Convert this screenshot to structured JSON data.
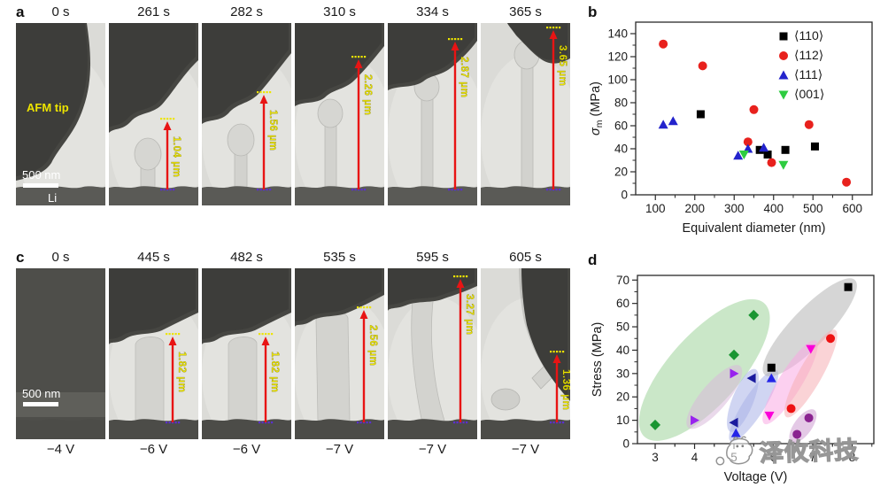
{
  "panels": {
    "a": {
      "label": "a",
      "annotations": {
        "afm_tip": "AFM tip",
        "scale_bar": "500 nm",
        "substrate": "Li"
      },
      "frames": [
        {
          "time": "0 s"
        },
        {
          "time": "261 s",
          "measurement": "1.04 μm"
        },
        {
          "time": "282 s",
          "measurement": "1.56 μm"
        },
        {
          "time": "310 s",
          "measurement": "2.26 μm"
        },
        {
          "time": "334 s",
          "measurement": "2.87 μm"
        },
        {
          "time": "365 s",
          "measurement": "3.65 μm"
        }
      ]
    },
    "c": {
      "label": "c",
      "annotations": {
        "scale_bar": "500 nm"
      },
      "frames": [
        {
          "time": "0 s",
          "voltage": "−4 V"
        },
        {
          "time": "445 s",
          "voltage": "−6 V",
          "measurement": "1.82 μm"
        },
        {
          "time": "482 s",
          "voltage": "−6 V",
          "measurement": "1.82 μm"
        },
        {
          "time": "535 s",
          "voltage": "−7 V",
          "measurement": "2.56 μm"
        },
        {
          "time": "595 s",
          "voltage": "−7 V",
          "measurement": "3.27 μm"
        },
        {
          "time": "605 s",
          "voltage": "−7 V",
          "measurement": "1.36 μm"
        }
      ]
    },
    "b": {
      "label": "b"
    },
    "d": {
      "label": "d"
    }
  },
  "watermark": {
    "text": "泽攸科技",
    "logo": "cartoon-face-logo"
  },
  "colors": {
    "arrow_red": "#e81414",
    "annotation_yellow": "#ede400",
    "dot_purple": "#5b2fd0"
  },
  "chart_data": [
    {
      "panel": "b",
      "type": "scatter",
      "title": "",
      "xlabel": "Equivalent diameter (nm)",
      "ylabel": "σm (MPa)",
      "ylabel_sub": "m",
      "xlim": [
        50,
        650
      ],
      "ylim": [
        0,
        150
      ],
      "xticks": [
        100,
        200,
        300,
        400,
        500,
        600
      ],
      "yticks": [
        0,
        20,
        40,
        60,
        80,
        100,
        120,
        140
      ],
      "grid": false,
      "legend_position": "top-right",
      "series": [
        {
          "name": "⟨110⟩",
          "marker": "square",
          "color": "#000000",
          "points": [
            [
              215,
              70
            ],
            [
              365,
              39
            ],
            [
              385,
              35
            ],
            [
              430,
              39
            ],
            [
              505,
              42
            ]
          ]
        },
        {
          "name": "⟨112⟩",
          "marker": "circle",
          "color": "#e8211d",
          "points": [
            [
              120,
              131
            ],
            [
              220,
              112
            ],
            [
              350,
              74
            ],
            [
              335,
              46
            ],
            [
              395,
              28
            ],
            [
              490,
              61
            ],
            [
              585,
              11
            ]
          ]
        },
        {
          "name": "⟨111⟩",
          "marker": "triangle-up",
          "color": "#2323cc",
          "points": [
            [
              120,
              61
            ],
            [
              145,
              64
            ],
            [
              310,
              34
            ],
            [
              335,
              40
            ],
            [
              375,
              41
            ]
          ]
        },
        {
          "name": "⟨001⟩",
          "marker": "triangle-down",
          "color": "#2ecc40",
          "points": [
            [
              325,
              35
            ],
            [
              425,
              26
            ]
          ]
        }
      ]
    },
    {
      "panel": "d",
      "type": "scatter",
      "title": "",
      "xlabel": "Voltage (V)",
      "ylabel": "Stress (MPa)",
      "xlim": [
        2.55,
        8.55
      ],
      "ylim": [
        0,
        72
      ],
      "xticks": [
        3,
        4,
        5,
        6,
        7,
        8
      ],
      "yticks": [
        0,
        10,
        20,
        30,
        40,
        50,
        60,
        70
      ],
      "grid": false,
      "legend_position": "none",
      "note": "each whisker pair is grouped by a tilted shaded ellipse",
      "series": [
        {
          "name": "green-diamond",
          "marker": "diamond",
          "color": "#1a9632",
          "points": [
            [
              3.0,
              8
            ],
            [
              5.0,
              38
            ],
            [
              5.5,
              55
            ]
          ],
          "ellipse_color": "#9fd49a",
          "ellipse_ry": 40
        },
        {
          "name": "violet-right-triangle",
          "marker": "triangle-right",
          "color": "#9922ee",
          "points": [
            [
              4.0,
              10
            ],
            [
              5.0,
              30
            ]
          ],
          "ellipse_color": "#d8b9da",
          "ellipse_ry": 15
        },
        {
          "name": "navy-left-triangle",
          "marker": "triangle-left",
          "color": "#1a1a9e",
          "points": [
            [
              5.0,
              9
            ],
            [
              5.45,
              28
            ]
          ],
          "ellipse_color": "#a9b3e8",
          "ellipse_ry": 12
        },
        {
          "name": "blue-up-triangle",
          "marker": "triangle-up",
          "color": "#2424e8",
          "points": [
            [
              5.05,
              4.5
            ],
            [
              5.95,
              28
            ]
          ],
          "ellipse_color": "#a9b3e8",
          "ellipse_ry": 12
        },
        {
          "name": "black-square",
          "marker": "square",
          "color": "#000000",
          "points": [
            [
              5.95,
              32.5
            ],
            [
              7.9,
              67
            ]
          ],
          "ellipse_color": "#b4b4b4",
          "ellipse_ry": 21
        },
        {
          "name": "magenta-down-triangle",
          "marker": "triangle-down",
          "color": "#fb00d9",
          "points": [
            [
              5.9,
              12
            ],
            [
              6.95,
              40.5
            ]
          ],
          "ellipse_color": "#f9a9e4",
          "ellipse_ry": 13
        },
        {
          "name": "red-circle",
          "marker": "circle",
          "color": "#ee1212",
          "points": [
            [
              6.45,
              15
            ],
            [
              7.45,
              45
            ]
          ],
          "ellipse_color": "#f6afb4",
          "ellipse_ry": 13
        },
        {
          "name": "purple-circle",
          "marker": "circle",
          "color": "#8a2390",
          "points": [
            [
              6.6,
              4
            ],
            [
              6.9,
              11
            ]
          ],
          "ellipse_color": "#cd9cd2",
          "ellipse_ry": 10
        }
      ]
    }
  ]
}
